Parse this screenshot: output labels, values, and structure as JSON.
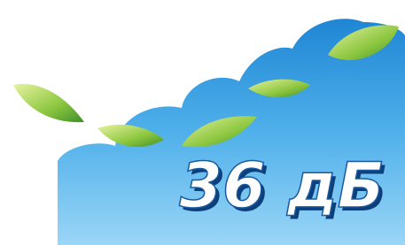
{
  "label": "36 дБ"
}
